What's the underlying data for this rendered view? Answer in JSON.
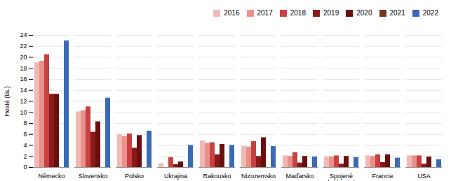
{
  "chart_data": {
    "type": "bar",
    "categories": [
      "Německo",
      "Slovensko",
      "Polsko",
      "Ukrajina",
      "Rakousko",
      "Nizozemsko",
      "Maďarsko",
      "Spojené\nkrálovství",
      "Francie",
      "USA"
    ],
    "series": [
      {
        "name": "2016",
        "color": "#f2b8b4",
        "values": [
          19.0,
          10.1,
          6.0,
          0.7,
          4.8,
          3.8,
          2.1,
          1.9,
          2.1,
          2.1
        ]
      },
      {
        "name": "2017",
        "color": "#e8918a",
        "values": [
          19.3,
          10.3,
          5.6,
          0.0,
          4.4,
          3.7,
          2.0,
          1.9,
          2.0,
          2.1
        ]
      },
      {
        "name": "2018",
        "color": "#c94040",
        "values": [
          20.5,
          11.0,
          6.1,
          1.8,
          4.5,
          4.7,
          2.7,
          2.1,
          2.3,
          2.1
        ]
      },
      {
        "name": "2019",
        "color": "#8b1a1a",
        "values": [
          13.3,
          6.4,
          3.5,
          0.5,
          2.3,
          2.0,
          0.8,
          0.6,
          0.9,
          0.6
        ]
      },
      {
        "name": "2020",
        "color": "#6b0e0e",
        "values": [
          13.3,
          8.3,
          5.8,
          1.0,
          4.2,
          5.4,
          2.0,
          2.0,
          2.3,
          1.9
        ]
      },
      {
        "name": "2021",
        "color": "#7a3520",
        "values": [
          0.0,
          0.0,
          0.0,
          0.0,
          0.0,
          0.0,
          0.0,
          0.0,
          0.0,
          0.0
        ]
      },
      {
        "name": "2022",
        "color": "#3a6ab5",
        "values": [
          23.0,
          12.6,
          6.6,
          4.0,
          4.0,
          3.8,
          1.9,
          1.8,
          1.7,
          1.4
        ]
      }
    ],
    "ylabel": "Hosté (tis.)",
    "ylim": [
      0,
      24
    ],
    "yticks": [
      0,
      2,
      4,
      6,
      8,
      10,
      12,
      14,
      16,
      18,
      20,
      22,
      24
    ],
    "grid": true,
    "legend": "upper right"
  }
}
